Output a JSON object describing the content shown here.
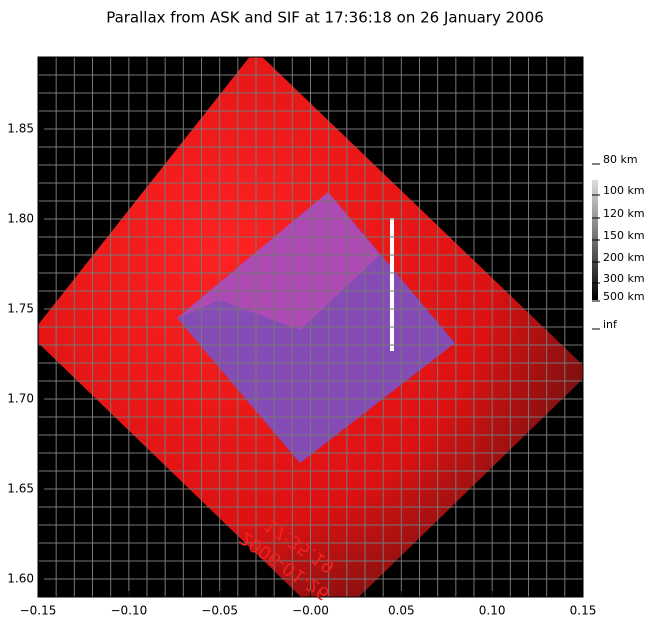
{
  "chart_data": {
    "type": "image",
    "title": "Parallax from ASK and SIF at 17:36:18 on 26 January 2006",
    "xlim": [
      -0.15,
      0.15
    ],
    "xticks": [
      {
        "value": -0.15,
        "label": "−0.15"
      },
      {
        "value": -0.1,
        "label": "−0.10"
      },
      {
        "value": -0.05,
        "label": "−0.05"
      },
      {
        "value": 0,
        "label": "−0.00"
      },
      {
        "value": 0.05,
        "label": "0.05"
      },
      {
        "value": 0.1,
        "label": "0.10"
      },
      {
        "value": 0.15,
        "label": "0.15"
      }
    ],
    "ylim": [
      1.59,
      1.89
    ],
    "yticks": [
      {
        "value": 1.6,
        "label": "1.60"
      },
      1.65,
      {
        "value": 1.7,
        "label": "1.70"
      },
      1.75,
      {
        "value": 1.8,
        "label": "1.80"
      },
      1.85
    ],
    "grid": true,
    "xgrid": [
      -0.14,
      -0.13,
      -0.12,
      -0.11,
      -0.1,
      -0.09,
      -0.08,
      -0.07,
      -0.06,
      -0.05,
      -0.04,
      -0.03,
      -0.02,
      -0.01,
      0,
      0.01,
      0.02,
      0.03,
      0.04,
      0.05,
      0.06,
      0.07,
      0.08,
      0.09,
      0.1,
      0.11,
      0.12,
      0.13,
      0.14
    ],
    "ygrid": [
      1.6,
      1.61,
      1.62,
      1.63,
      1.64,
      1.65,
      1.66,
      1.67,
      1.68,
      1.69,
      1.7,
      1.71,
      1.72,
      1.73,
      1.74,
      1.75,
      1.76,
      1.77,
      1.78,
      1.79,
      1.8,
      1.81,
      1.82,
      1.83,
      1.84,
      1.85,
      1.86,
      1.87,
      1.88
    ],
    "colorbar_labels": [
      "80 km",
      "100 km",
      "120 km",
      "150 km",
      "200 km",
      "300 km",
      "500 km",
      "inf"
    ],
    "annotations": [
      "17:35:19",
      "2006-01-26"
    ]
  }
}
